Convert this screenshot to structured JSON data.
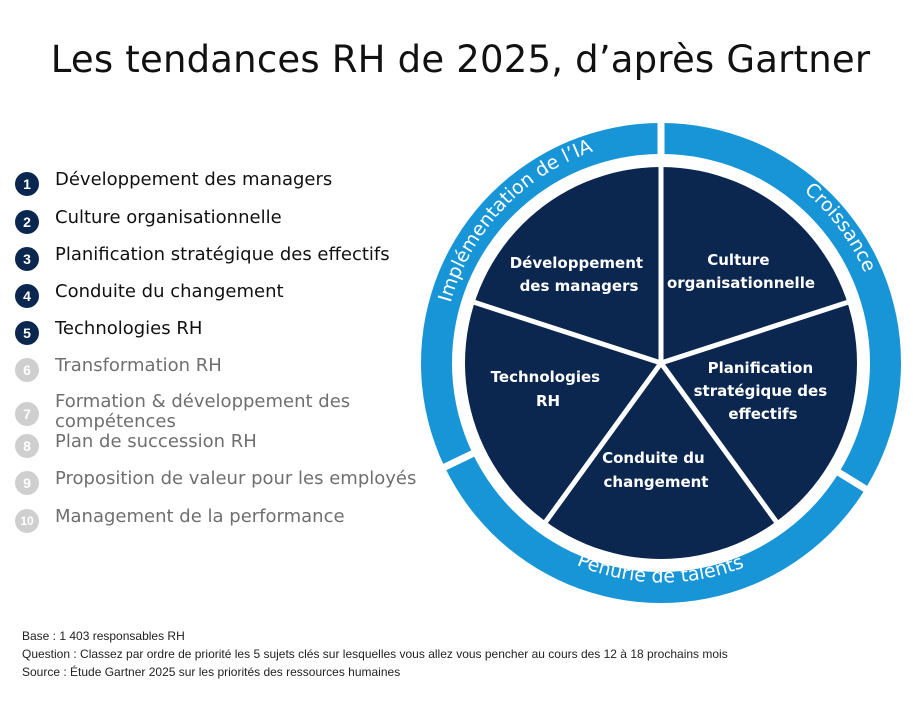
{
  "title": "Les tendances RH de 2025, d’après Gartner",
  "list": {
    "items": [
      {
        "number": "1",
        "label": "Développement des managers",
        "priority": "top"
      },
      {
        "number": "2",
        "label": "Culture organisationnelle",
        "priority": "top"
      },
      {
        "number": "3",
        "label": "Planification stratégique des effectifs",
        "priority": "top"
      },
      {
        "number": "4",
        "label": "Conduite du changement",
        "priority": "top"
      },
      {
        "number": "5",
        "label": "Technologies RH",
        "priority": "top"
      },
      {
        "number": "6",
        "label": "Transformation RH",
        "priority": "other"
      },
      {
        "number": "7",
        "label": "Formation & développement des\ncompétences",
        "priority": "other"
      },
      {
        "number": "8",
        "label": "Plan de succession RH",
        "priority": "other"
      },
      {
        "number": "9",
        "label": "Proposition de valeur pour les employés",
        "priority": "other"
      },
      {
        "number": "10",
        "label": "Management de la performance",
        "priority": "other"
      }
    ]
  },
  "wheel": {
    "segments": [
      {
        "lines": [
          "Développement",
          "des managers"
        ]
      },
      {
        "lines": [
          "Culture",
          "organisationnelle"
        ]
      },
      {
        "lines": [
          "Planification",
          "stratégique des",
          "effectifs"
        ]
      },
      {
        "lines": [
          "Conduite du",
          "changement"
        ]
      },
      {
        "lines": [
          "Technologies",
          "RH"
        ]
      }
    ],
    "ring": {
      "ai": "Implémentation de l’IA",
      "growth": "Croissance",
      "talent": "Pénurie de talents"
    }
  },
  "notes": {
    "base": "Base : 1 403 responsables RH",
    "question": "Question : Classez par ordre de priorité les 5 sujets clés sur lesquelles vous allez vous pencher au cours des 12 à 18 prochains mois",
    "source": "Source : Étude Gartner 2025 sur les priorités des ressources humaines"
  },
  "colors": {
    "navy": "#0b2750",
    "ring_blue": "#1895d6",
    "gray_badge": "#cfcfcf",
    "gray_text": "#6f6f6f"
  }
}
